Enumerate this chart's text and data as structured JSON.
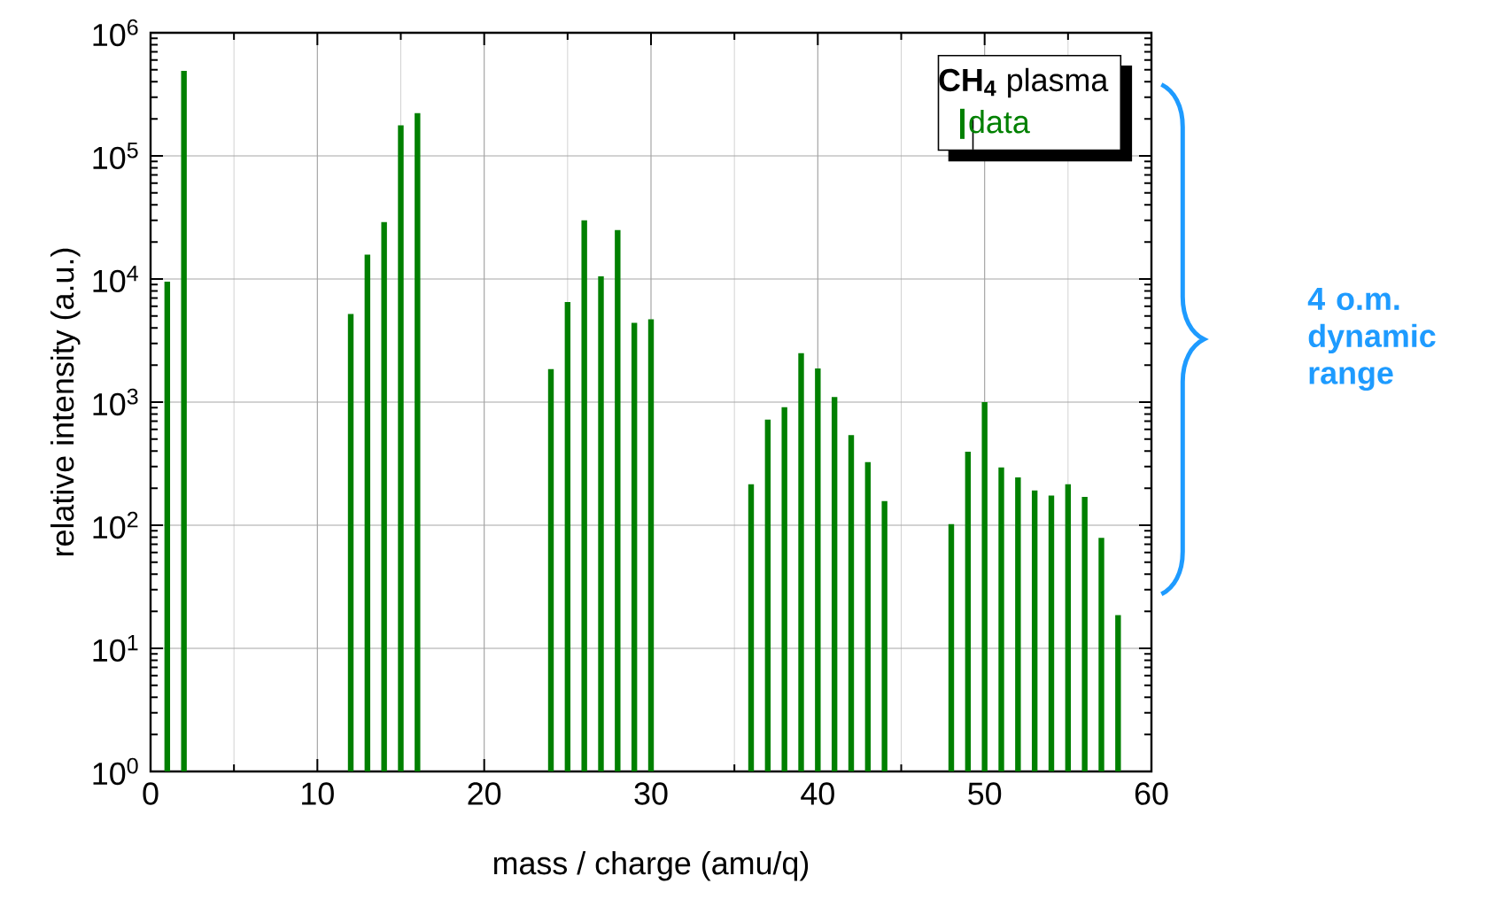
{
  "chart_data": {
    "type": "bar",
    "xlabel": "mass / charge (amu/q)",
    "ylabel": "relative intensity (a.u.)",
    "legend_title": "**CH$_{4}$** plasma",
    "annotations": [
      "4 o.m. dynamic range"
    ],
    "x": [
      1,
      2,
      12,
      13,
      14,
      15,
      16,
      24,
      25,
      26,
      27,
      28,
      29,
      30,
      36,
      37,
      38,
      39,
      40,
      41,
      42,
      43,
      44,
      48,
      49,
      50,
      51,
      52,
      53,
      54,
      55,
      56,
      57,
      58
    ],
    "series": [
      {
        "name": "data",
        "color": "#008000",
        "values": [
          9500,
          490000,
          5200,
          15800,
          29000,
          177000,
          222000,
          1850,
          6500,
          30000,
          10500,
          25000,
          4400,
          4700,
          215,
          720,
          910,
          2500,
          1880,
          1100,
          540,
          325,
          157,
          102,
          395,
          1000,
          295,
          245,
          192,
          174,
          215,
          170,
          79,
          18.6
        ]
      }
    ],
    "log": "y",
    "xlim": [
      0,
      60
    ],
    "ylim": [
      1,
      1000000
    ],
    "xticks": [
      0,
      10,
      20,
      30,
      40,
      50,
      60
    ],
    "yticks": [
      {
        "value": 1,
        "label": "10$^{0}$"
      },
      {
        "value": 10,
        "label": "10$^{1}$"
      },
      {
        "value": 100,
        "label": "10$^{2}$"
      },
      {
        "value": 1000,
        "label": "10$^{3}$"
      },
      {
        "value": 10000,
        "label": "10$^{4}$"
      },
      {
        "value": 100000,
        "label": "10$^{5}$"
      },
      {
        "value": 1000000,
        "label": "10$^{6}$"
      }
    ],
    "grid": true,
    "legend": "top right"
  }
}
